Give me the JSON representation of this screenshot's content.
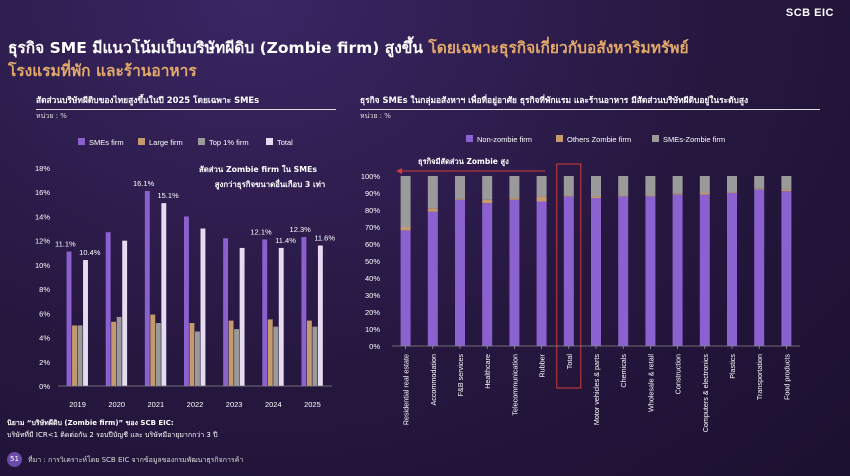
{
  "logo": "SCB EIC",
  "title": {
    "part1": "ธุรกิจ SME มีแนวโน้มเป็นบริษัทผีดิบ (Zombie firm) สูงขึ้น",
    "part2": "โดยเฉพาะธุรกิจเกี่ยวกับอสังหาริมทรัพย์",
    "part3": "โรงแรมที่พัก และร้านอาหาร"
  },
  "left": {
    "subtitle": "สัดส่วนบริษัทผีดิบของไทยสูงขึ้นในปี 2025 โดยเฉพาะ SMEs",
    "unit": "หน่วย : %",
    "annotation_line1": "สัดส่วน Zombie firm ใน SMEs",
    "annotation_line2": "สูงกว่าธุรกิจขนาดอื่นเกือบ 3 เท่า"
  },
  "right": {
    "subtitle": "ธุรกิจ SMEs ในกลุ่มอสังหาฯ เพื่อที่อยู่อาศัย ธุรกิจที่พักแรม และร้านอาหาร มีสัดส่วนบริษัทผีดิบอยู่ในระดับสูง",
    "unit": "หน่วย : %",
    "annotation": "ธุรกิจมีสัดส่วน Zombie สูง"
  },
  "footnote": {
    "line1": "นิยาม “บริษัทผีดิบ (Zombie firm)” ของ SCB EIC:",
    "line2": "บริษัทที่มี ICR<1 ติดต่อกัน 2 รอบปีบัญชี และ บริษัทมีอายุมากกว่า 3 ปี",
    "source": "ที่มา : การวิเคราะห์โดย SCB EIC จากข้อมูลของกรมพัฒนาธุรกิจการค้า"
  },
  "page_number": "51",
  "colors": {
    "smes": "#8b61cf",
    "large": "#c49a6c",
    "top1": "#9a9a9a",
    "total": "#e6dcef",
    "nonzombie": "#8b61cf",
    "others": "#c49a6c",
    "smes_zombie": "#9a9a9a",
    "highlight": "#d63a3a"
  },
  "chart_data": [
    {
      "type": "bar",
      "categories": [
        "2019",
        "2020",
        "2021",
        "2022",
        "2023",
        "2024",
        "2025"
      ],
      "series": [
        {
          "name": "SMEs firm",
          "values": [
            11.1,
            12.7,
            16.1,
            14.0,
            12.2,
            12.1,
            12.3
          ]
        },
        {
          "name": "Large firm",
          "values": [
            5.0,
            5.3,
            5.9,
            5.2,
            5.4,
            5.5,
            5.4
          ]
        },
        {
          "name": "Top 1% firm",
          "values": [
            5.0,
            5.7,
            5.2,
            4.5,
            4.7,
            4.9,
            4.9
          ]
        },
        {
          "name": "Total",
          "values": [
            10.4,
            12.0,
            15.1,
            13.0,
            11.4,
            11.4,
            11.6
          ]
        }
      ],
      "data_labels": [
        {
          "series": 0,
          "index": 0,
          "text": "11.1%"
        },
        {
          "series": 3,
          "index": 0,
          "text": "10.4%"
        },
        {
          "series": 0,
          "index": 2,
          "text": "16.1%"
        },
        {
          "series": 3,
          "index": 2,
          "text": "15.1%"
        },
        {
          "series": 0,
          "index": 5,
          "text": "12.1%"
        },
        {
          "series": 3,
          "index": 5,
          "text": "11.4%"
        },
        {
          "series": 0,
          "index": 6,
          "text": "12.3%"
        },
        {
          "series": 3,
          "index": 6,
          "text": "11.6%"
        }
      ],
      "ylim": [
        0,
        18
      ],
      "yticks": [
        "0%",
        "2%",
        "4%",
        "6%",
        "8%",
        "10%",
        "12%",
        "14%",
        "16%",
        "18%"
      ],
      "legend": "top"
    },
    {
      "type": "bar",
      "stacked": true,
      "categories": [
        "Residential real estate",
        "Accommodation",
        "F&B services",
        "Healthcare",
        "Telecommunication",
        "Rubber",
        "Total",
        "Motor vehicles & parts",
        "Chemicals",
        "Wholesale & retail",
        "Construction",
        "Computers & electronics",
        "Plastics",
        "Transportation",
        "Food products"
      ],
      "series": [
        {
          "name": "Non-zombie firm",
          "values": [
            68,
            79,
            86,
            84,
            86,
            85,
            88,
            87,
            88,
            88,
            89,
            89,
            90,
            92,
            91
          ]
        },
        {
          "name": "Others Zombie firm",
          "values": [
            2,
            2,
            0.5,
            2,
            1,
            3,
            0.5,
            1,
            0.5,
            0.5,
            0.5,
            1,
            0.5,
            0.5,
            1
          ]
        },
        {
          "name": "SMEs-Zombie firm",
          "values": [
            30,
            19,
            13.5,
            14,
            13,
            12,
            11.5,
            12,
            11.5,
            11.5,
            10.5,
            10,
            9.5,
            7.5,
            8
          ]
        }
      ],
      "highlight_category": "Total",
      "ylim": [
        0,
        100
      ],
      "yticks": [
        "0%",
        "10%",
        "20%",
        "30%",
        "40%",
        "50%",
        "60%",
        "70%",
        "80%",
        "90%",
        "100%"
      ],
      "legend": "top"
    }
  ]
}
